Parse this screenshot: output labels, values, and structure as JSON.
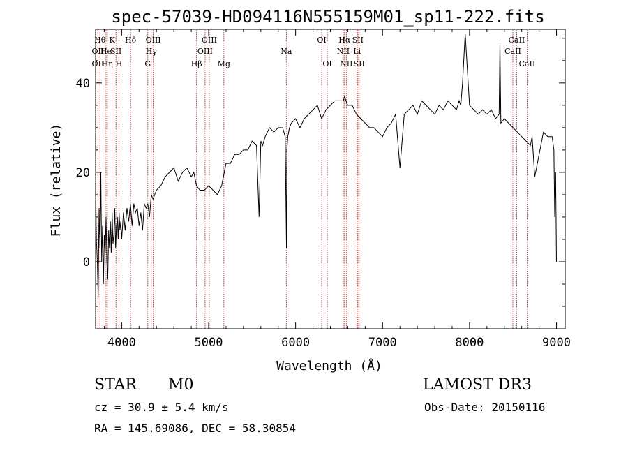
{
  "chart_data": {
    "type": "line",
    "title": "spec-57039-HD094116N555159M01_sp11-222.fits",
    "xlabel": "Wavelength (Å)",
    "ylabel": "Flux (relative)",
    "xlim": [
      3700,
      9100
    ],
    "ylim": [
      -15,
      52
    ],
    "x_ticks": [
      4000,
      5000,
      6000,
      7000,
      8000,
      9000
    ],
    "y_ticks": [
      0,
      20,
      40
    ],
    "x_tick_labels": [
      "4000",
      "5000",
      "6000",
      "7000",
      "8000",
      "9000"
    ],
    "y_tick_labels": [
      "0",
      "20",
      "40"
    ],
    "grid": false,
    "line_color": "#000000",
    "marker_color": "#b22222",
    "series": [
      {
        "x": [
          3700,
          3710,
          3720,
          3730,
          3740,
          3750,
          3760,
          3770,
          3780,
          3790,
          3800,
          3810,
          3820,
          3830,
          3840,
          3850,
          3860,
          3870,
          3880,
          3890,
          3900,
          3910,
          3920,
          3930,
          3940,
          3950,
          3960,
          3970,
          3980,
          3990,
          4000,
          4020,
          4040,
          4060,
          4080,
          4100,
          4120,
          4140,
          4160,
          4180,
          4200,
          4220,
          4240,
          4260,
          4280,
          4300,
          4320,
          4340,
          4360,
          4380,
          4400,
          4450,
          4500,
          4550,
          4600,
          4650,
          4700,
          4750,
          4800,
          4830,
          4860,
          4900,
          4950,
          5000,
          5050,
          5100,
          5150,
          5200,
          5250,
          5300,
          5350,
          5400,
          5450,
          5500,
          5550,
          5580,
          5600,
          5620,
          5650,
          5700,
          5750,
          5800,
          5850,
          5880,
          5895,
          5900,
          5910,
          5930,
          5950,
          6000,
          6050,
          6100,
          6150,
          6200,
          6250,
          6300,
          6350,
          6400,
          6450,
          6500,
          6550,
          6563,
          6580,
          6600,
          6650,
          6700,
          6750,
          6800,
          6850,
          6900,
          6950,
          7000,
          7050,
          7100,
          7150,
          7200,
          7250,
          7300,
          7350,
          7400,
          7450,
          7500,
          7550,
          7600,
          7650,
          7700,
          7750,
          7800,
          7850,
          7880,
          7900,
          7920,
          7950,
          8000,
          8050,
          8100,
          8150,
          8200,
          8250,
          8300,
          8340,
          8350,
          8360,
          8400,
          8450,
          8500,
          8550,
          8600,
          8650,
          8700,
          8720,
          8750,
          8800,
          8850,
          8900,
          8950,
          8970,
          8980,
          8990,
          9000
        ],
        "y": [
          17,
          5,
          0,
          -8,
          12,
          3,
          20,
          0,
          8,
          -5,
          6,
          2,
          10,
          0,
          -4,
          7,
          3,
          9,
          2,
          11,
          4,
          6,
          12,
          3,
          8,
          10,
          5,
          11,
          7,
          9,
          5,
          11,
          7,
          12,
          9,
          13,
          8,
          13,
          11,
          12,
          8,
          11,
          7,
          13,
          12,
          13,
          10,
          15,
          14,
          15,
          16,
          17,
          19,
          20,
          21,
          18,
          20,
          21,
          19,
          20,
          17,
          16,
          16,
          17,
          16,
          15,
          17,
          22,
          22,
          24,
          24,
          25,
          25,
          27,
          26,
          10,
          27,
          26,
          28,
          30,
          29,
          30,
          30,
          28,
          3,
          25,
          28,
          30,
          31,
          32,
          30,
          32,
          33,
          34,
          35,
          32,
          34,
          35,
          36,
          36,
          36,
          37,
          36,
          35,
          35,
          33,
          32,
          31,
          30,
          30,
          29,
          28,
          30,
          31,
          33,
          21,
          33,
          34,
          35,
          33,
          36,
          35,
          34,
          33,
          35,
          34,
          36,
          35,
          34,
          36,
          35,
          40,
          51,
          35,
          34,
          33,
          34,
          33,
          34,
          32,
          33,
          49,
          31,
          32,
          31,
          30,
          29,
          28,
          27,
          26,
          28,
          19,
          24,
          29,
          28,
          28,
          25,
          10,
          20,
          0
        ]
      }
    ],
    "line_markers": [
      {
        "wl": 3750,
        "label": "Hθ",
        "row": 1
      },
      {
        "wl": 3727,
        "label": "OII",
        "row": 2
      },
      {
        "wl": 3727,
        "label": "OII",
        "row": 3
      },
      {
        "wl": 3820,
        "label": "He",
        "row": 2
      },
      {
        "wl": 3835,
        "label": "Hη",
        "row": 3
      },
      {
        "wl": 3889,
        "label": "K",
        "row": 1
      },
      {
        "wl": 3934,
        "label": "SII",
        "row": 2
      },
      {
        "wl": 3968,
        "label": "H",
        "row": 3
      },
      {
        "wl": 4102,
        "label": "Hδ",
        "row": 1
      },
      {
        "wl": 4300,
        "label": "G",
        "row": 3
      },
      {
        "wl": 4340,
        "label": "Hγ",
        "row": 2
      },
      {
        "wl": 4363,
        "label": "OIII",
        "row": 1
      },
      {
        "wl": 4861,
        "label": "Hβ",
        "row": 3
      },
      {
        "wl": 4959,
        "label": "OIII",
        "row": 2
      },
      {
        "wl": 5007,
        "label": "OIII",
        "row": 1
      },
      {
        "wl": 5175,
        "label": "Mg",
        "row": 3
      },
      {
        "wl": 5893,
        "label": "Na",
        "row": 2
      },
      {
        "wl": 6300,
        "label": "OI",
        "row": 1
      },
      {
        "wl": 6364,
        "label": "OI",
        "row": 3
      },
      {
        "wl": 6548,
        "label": "NII",
        "row": 2
      },
      {
        "wl": 6563,
        "label": "Hα",
        "row": 1
      },
      {
        "wl": 6583,
        "label": "NII",
        "row": 3
      },
      {
        "wl": 6707,
        "label": "Li",
        "row": 2
      },
      {
        "wl": 6716,
        "label": "SII",
        "row": 1
      },
      {
        "wl": 6731,
        "label": "SII",
        "row": 3
      },
      {
        "wl": 8498,
        "label": "CaII",
        "row": 2
      },
      {
        "wl": 8542,
        "label": "CaII",
        "row": 1
      },
      {
        "wl": 8662,
        "label": "CaII",
        "row": 3
      }
    ]
  },
  "info": {
    "class": "STAR",
    "subclass": "M0",
    "survey": "LAMOST DR3",
    "cz": "cz = 30.9 ± 5.4 km/s",
    "obs_date": "Obs-Date: 20150116",
    "coords": "RA = 145.69086, DEC =  58.30854"
  }
}
